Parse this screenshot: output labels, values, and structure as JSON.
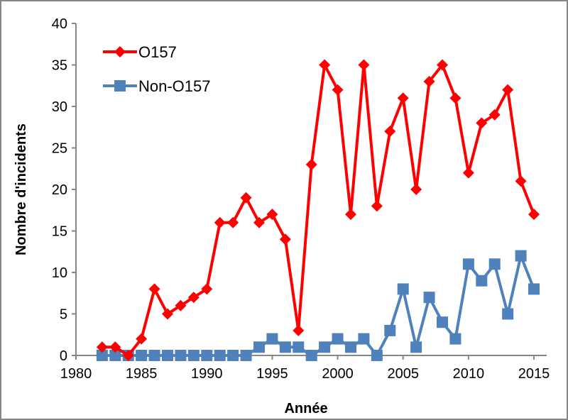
{
  "chart_data": {
    "type": "line",
    "xlabel": "Année",
    "ylabel": "Nombre d'incidents",
    "xlim": [
      1980,
      2015
    ],
    "ylim": [
      0,
      40
    ],
    "xticks": [
      1980,
      1985,
      1990,
      1995,
      2000,
      2005,
      2010,
      2015
    ],
    "yticks": [
      0,
      5,
      10,
      15,
      20,
      25,
      30,
      35,
      40
    ],
    "grid": false,
    "legend_position": "top-left",
    "x": [
      1982,
      1983,
      1984,
      1985,
      1986,
      1987,
      1988,
      1989,
      1990,
      1991,
      1992,
      1993,
      1994,
      1995,
      1996,
      1997,
      1998,
      1999,
      2000,
      2001,
      2002,
      2003,
      2004,
      2005,
      2006,
      2007,
      2008,
      2009,
      2010,
      2011,
      2012,
      2013,
      2014,
      2015
    ],
    "series": [
      {
        "name": "O157",
        "color": "#FF0000",
        "marker": "diamond",
        "values": [
          1,
          1,
          0,
          2,
          8,
          5,
          6,
          7,
          8,
          16,
          16,
          19,
          16,
          17,
          14,
          3,
          23,
          35,
          32,
          17,
          35,
          18,
          27,
          31,
          20,
          33,
          35,
          31,
          22,
          28,
          29,
          32,
          21,
          17
        ]
      },
      {
        "name": "Non-O157",
        "color": "#4F81BD",
        "marker": "square",
        "values": [
          0,
          0,
          0,
          0,
          0,
          0,
          0,
          0,
          0,
          0,
          0,
          0,
          1,
          2,
          1,
          1,
          0,
          1,
          2,
          1,
          2,
          0,
          3,
          8,
          1,
          7,
          4,
          2,
          11,
          9,
          11,
          5,
          12,
          8
        ]
      }
    ]
  }
}
